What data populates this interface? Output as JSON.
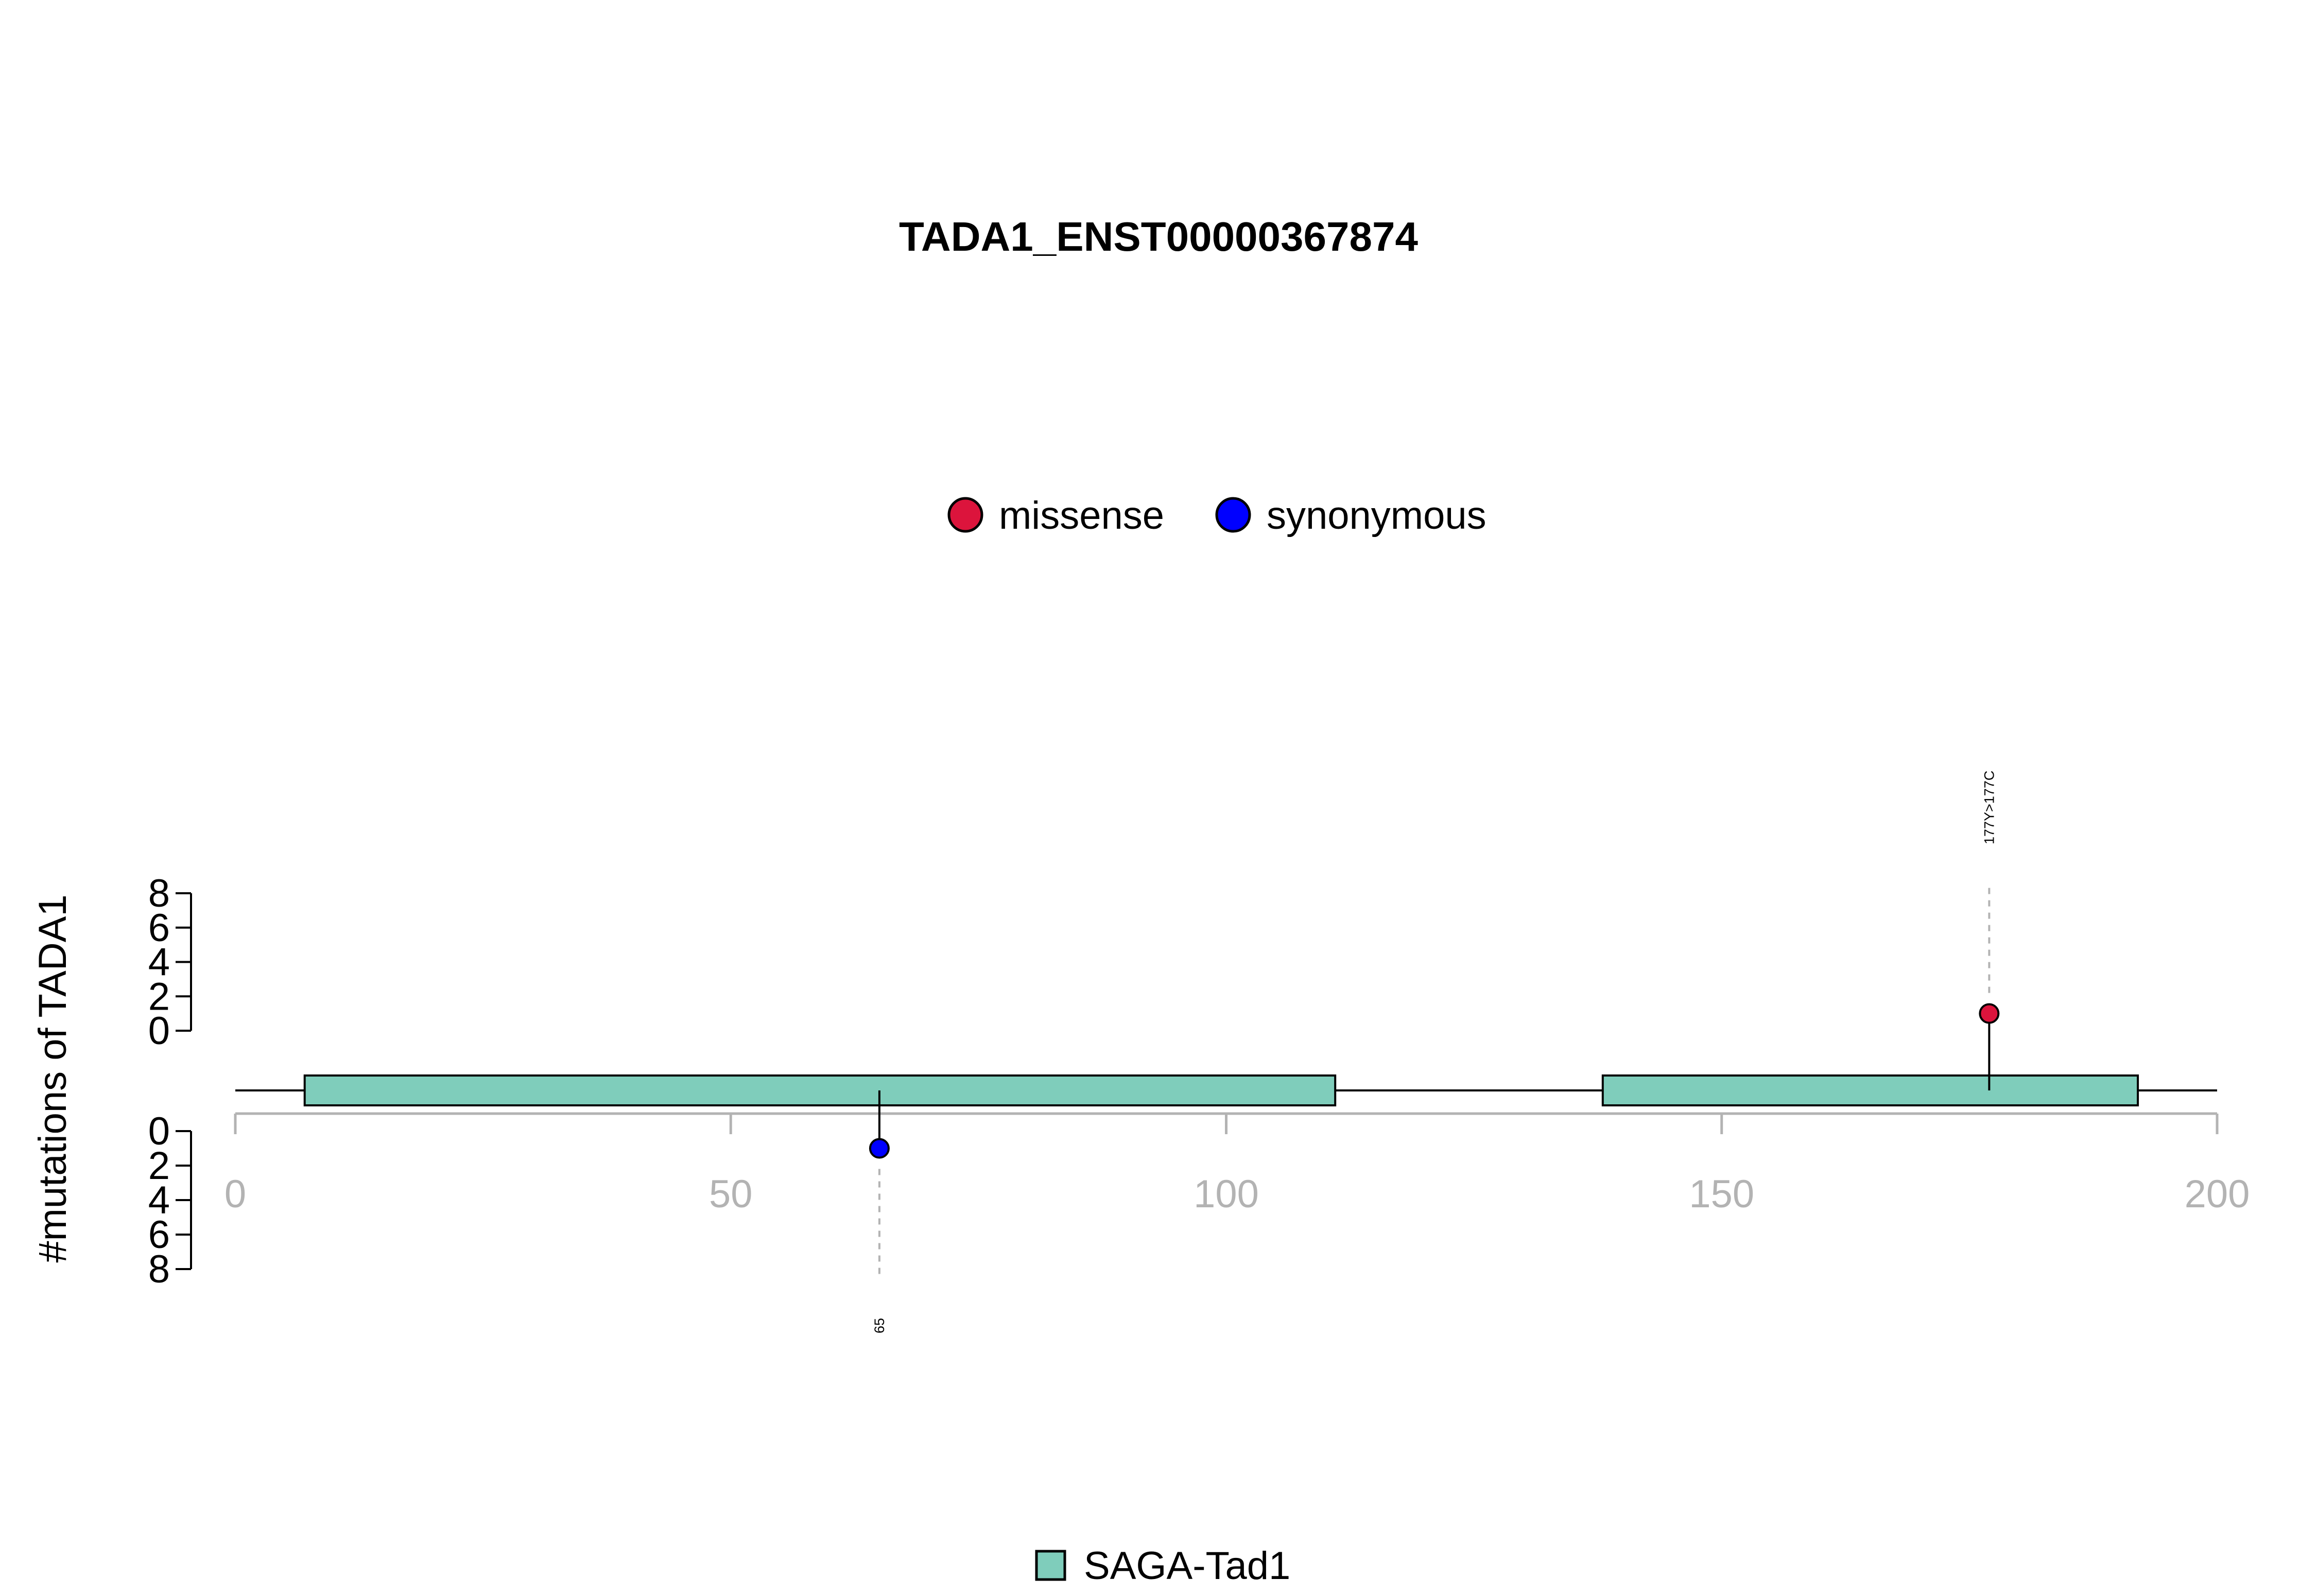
{
  "chart_data": {
    "type": "lollipop",
    "title": "TADA1_ENST00000367874",
    "ylabel": "#mutations of TADA1",
    "xlim": [
      0,
      200
    ],
    "x_ticks": [
      0,
      50,
      100,
      150,
      200
    ],
    "y_ticks_top": [
      0,
      2,
      4,
      6,
      8
    ],
    "y_ticks_bottom": [
      0,
      2,
      4,
      6,
      8
    ],
    "legend_top": [
      {
        "label": "missense",
        "color": "#DC143C"
      },
      {
        "label": "synonymous",
        "color": "#0000FF"
      }
    ],
    "domains": [
      {
        "name": "SAGA-Tad1",
        "start": 7,
        "end": 111,
        "color": "#7FCDBB"
      },
      {
        "name": "SAGA-Tad1",
        "start": 138,
        "end": 192,
        "color": "#7FCDBB"
      }
    ],
    "legend_bottom": [
      {
        "label": "SAGA-Tad1",
        "color": "#7FCDBB"
      }
    ],
    "mutations": [
      {
        "position": 177,
        "count": 1,
        "type": "missense",
        "label": "177Y>177C",
        "side": "top",
        "color": "#DC143C"
      },
      {
        "position": 65,
        "count": 1,
        "type": "synonymous",
        "label": "65",
        "side": "bottom",
        "color": "#0000FF"
      }
    ]
  }
}
